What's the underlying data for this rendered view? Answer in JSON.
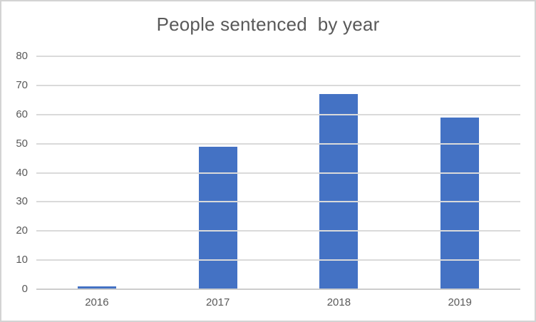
{
  "chart": {
    "title": "People sentenced  by year"
  },
  "chart_data": {
    "type": "bar",
    "title": "People sentenced  by year",
    "categories": [
      "2016",
      "2017",
      "2018",
      "2019"
    ],
    "values": [
      1,
      49,
      67,
      59
    ],
    "xlabel": "",
    "ylabel": "",
    "ylim": [
      0,
      80
    ],
    "ytick_step": 10,
    "yticks": [
      0,
      10,
      20,
      30,
      40,
      50,
      60,
      70,
      80
    ],
    "grid": true,
    "legend": "none",
    "colors": {
      "bar_fill": "#4472C4",
      "text": "#595959",
      "gridline": "#DADADA",
      "axis_line": "#CDCDCD",
      "figure_border": "#D3D3D3",
      "background": "#FFFFFF"
    }
  }
}
